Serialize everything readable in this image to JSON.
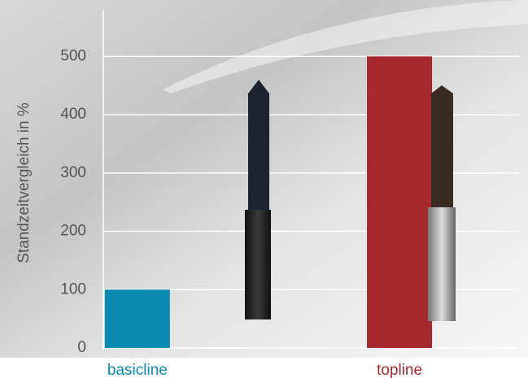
{
  "chart_data": {
    "type": "bar",
    "y_label": "Standzeitvergleich in %",
    "categories": [
      "basicline",
      "topline"
    ],
    "values": [
      100,
      500
    ],
    "colors": [
      "#0b8bb2",
      "#a5282f"
    ],
    "ylim": [
      0,
      580
    ],
    "yticks": [
      0,
      100,
      200,
      300,
      400,
      500
    ],
    "grid": true
  }
}
